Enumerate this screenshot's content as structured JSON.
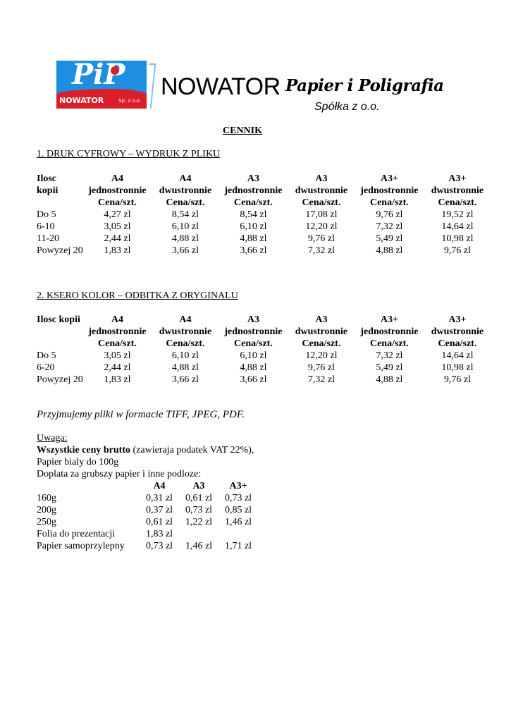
{
  "logo": {
    "mark": "PiP",
    "name": "NOWATOR",
    "suffix": "Sp. z o.o.",
    "colors": {
      "blue": "#1e8fe0",
      "red": "#d9202a"
    }
  },
  "header": {
    "brand": "NOWATOR",
    "tagline": "Papier i Poligrafia",
    "subtitle": "Spółka z o.o."
  },
  "title": "CENNIK",
  "section1": {
    "heading": "1. DRUK CYFROWY – WYDRUK Z PLIKU",
    "columns": [
      [
        "Ilosc",
        "kopii",
        ""
      ],
      [
        "A4",
        "jednostronnie",
        "Cena/szt."
      ],
      [
        "A4",
        "dwustronnie",
        "Cena/szt."
      ],
      [
        "A3",
        "jednostronnie",
        "Cena/szt."
      ],
      [
        "A3",
        "dwustronnie",
        "Cena/szt."
      ],
      [
        "A3+",
        "jednostronnie",
        "Cena/szt."
      ],
      [
        "A3+",
        "dwustronnie",
        "Cena/szt."
      ]
    ],
    "rows": [
      [
        "Do 5",
        "4,27 zl",
        "8,54 zl",
        "8,54 zl",
        "17,08 zl",
        "9,76 zl",
        "19,52 zl"
      ],
      [
        "6-10",
        "3,05 zl",
        "6,10 zl",
        "6,10 zl",
        "12,20 zl",
        "7,32 zl",
        "14,64 zl"
      ],
      [
        "11-20",
        "2,44 zl",
        "4,88 zl",
        "4,88 zl",
        "9,76 zl",
        "5,49 zl",
        "10,98 zl"
      ],
      [
        "Powyzej 20",
        "1,83 zl",
        "3,66 zl",
        "3,66 zl",
        "7,32 zl",
        "4,88 zl",
        "9,76 zl"
      ]
    ]
  },
  "section2": {
    "heading": "2. KSERO KOLOR – ODBITKA Z ORYGINALU",
    "columns": [
      [
        "Ilosc kopii",
        "",
        ""
      ],
      [
        "A4",
        "jednostronnie",
        "Cena/szt."
      ],
      [
        "A4",
        "dwustronnie",
        "Cena/szt."
      ],
      [
        "A3",
        "jednostronnie",
        "Cena/szt."
      ],
      [
        "A3",
        "dwustronnie",
        "Cena/szt."
      ],
      [
        "A3+",
        "jednostronnie",
        "Cena/szt."
      ],
      [
        "A3+",
        "dwustronnie",
        "Cena/szt."
      ]
    ],
    "rows": [
      [
        "Do 5",
        "3,05 zl",
        "6,10 zl",
        "6,10 zl",
        "12,20 zl",
        "7,32 zl",
        "14,64 zl"
      ],
      [
        "6-20",
        "2,44 zl",
        "4,88 zl",
        "4,88 zl",
        "9,76 zl",
        "5,49 zl",
        "10,98 zl"
      ],
      [
        "Powyzej 20",
        "1,83 zl",
        "3,66 zl",
        "3,66 zl",
        "7,32 zl",
        "4,88 zl",
        "9,76 zl"
      ]
    ]
  },
  "formats_note": "Przyjmujemy pliki w formacie TIFF, JPEG, PDF.",
  "notes": {
    "label": "Uwaga:",
    "brutto_bold": "Wszystkie ceny  brutto",
    "brutto_rest": " (zawieraja podatek VAT 22%),",
    "paper": "Papier bialy do 100g",
    "surcharge": "Doplata za grubszy papier i inne podloze:"
  },
  "surcharge_table": {
    "columns": [
      "",
      "A4",
      "A3",
      "A3+"
    ],
    "rows": [
      [
        "160g",
        "0,31 zl",
        "0,61 zl",
        "0,73 zl"
      ],
      [
        "200g",
        "0,37 zl",
        "0,73 zl",
        "0,85 zl"
      ],
      [
        "250g",
        "0,61 zl",
        "1,22 zl",
        "1,46 zl"
      ],
      [
        "Folia do prezentacji",
        "1,83 zl",
        "",
        ""
      ],
      [
        "Papier samoprzylepny",
        "0,73 zl",
        "1,46 zl",
        "1,71 zl"
      ]
    ]
  }
}
